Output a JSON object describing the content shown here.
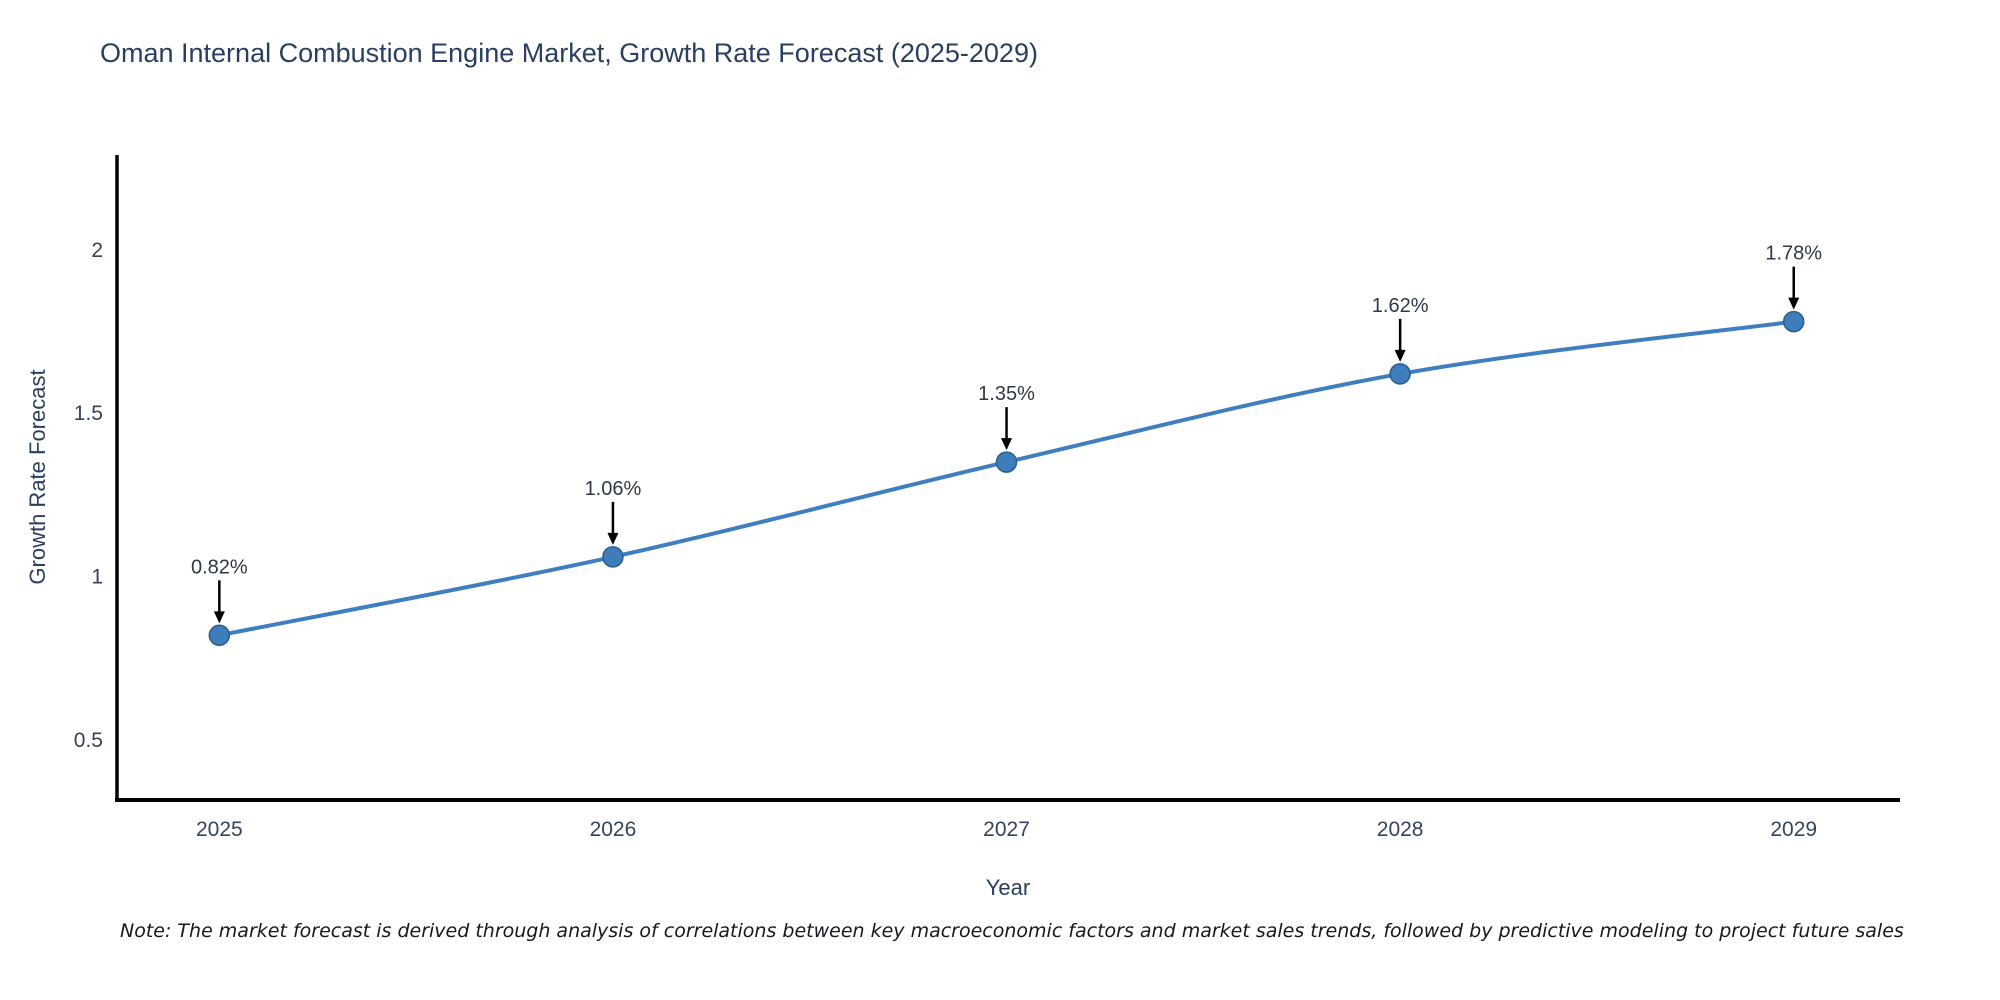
{
  "page": {
    "background_color": "#ffffff"
  },
  "chart_data": {
    "type": "line",
    "title": "Oman Internal Combustion Engine Market, Growth Rate Forecast (2025-2029)",
    "xlabel": "Year",
    "ylabel": "Growth Rate Forecast",
    "x": [
      2025,
      2026,
      2027,
      2028,
      2029
    ],
    "series": [
      {
        "name": "Growth Rate Forecast",
        "values": [
          0.82,
          1.06,
          1.35,
          1.62,
          1.78
        ]
      }
    ],
    "point_labels": [
      "0.82%",
      "1.06%",
      "1.35%",
      "1.62%",
      "1.78%"
    ],
    "x_tick_labels": [
      "2025",
      "2026",
      "2027",
      "2028",
      "2029"
    ],
    "x_tick_values": [
      2025,
      2026,
      2027,
      2028,
      2029
    ],
    "y_tick_labels": [
      "0.5",
      "1",
      "1.5",
      "2"
    ],
    "y_tick_values": [
      0.5,
      1,
      1.5,
      2
    ],
    "xlim": [
      2024.74,
      2029.27
    ],
    "ylim": [
      0.316,
      2.29
    ],
    "grid": false,
    "legend_position": "none",
    "curve": "spline",
    "annotation_style": "down-arrow",
    "colors": {
      "line": "#3f7fbf",
      "marker_fill": "#3d7dbc",
      "marker_edge": "#2b5c8f",
      "axis": "#000000",
      "arrow": "#000000",
      "title_text": "#2a3f5f",
      "tick_text": "#36435a",
      "annotation_text": "#2f3846"
    }
  },
  "note": "Note: The market forecast is derived through analysis of correlations between key macroeconomic factors and market sales trends, followed by predictive modeling to project future sales"
}
